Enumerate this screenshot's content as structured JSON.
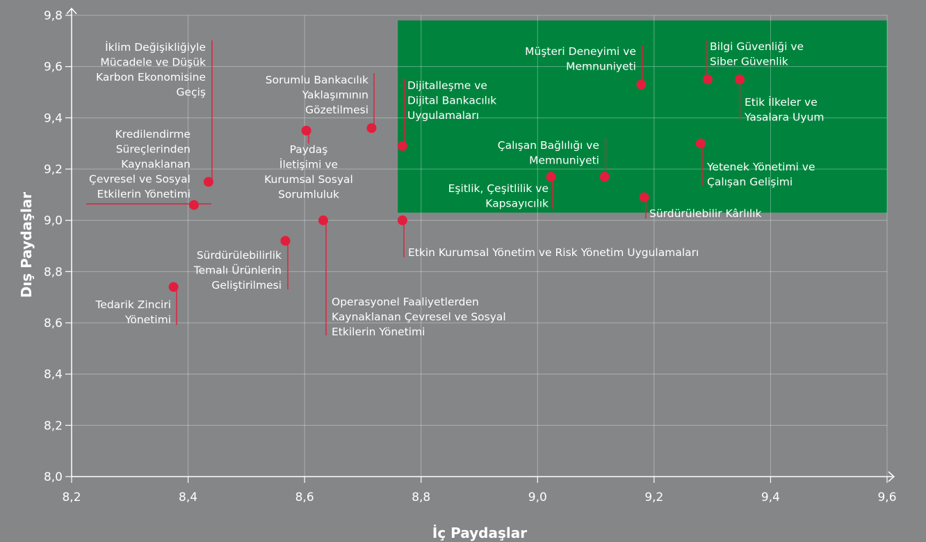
{
  "chart_data": {
    "type": "scatter",
    "xlabel": "İç Paydaşlar",
    "ylabel": "Dış Paydaşlar",
    "xlim": [
      8.2,
      9.6
    ],
    "ylim": [
      8.0,
      9.8
    ],
    "x_ticks": [
      "8,2",
      "8,4",
      "8,6",
      "8,8",
      "9,0",
      "9,2",
      "9,4",
      "9,6"
    ],
    "y_ticks": [
      "8,0",
      "8,2",
      "8,4",
      "8,6",
      "8,8",
      "9,0",
      "9,2",
      "9,4",
      "9,6",
      "9,8"
    ],
    "grid": true,
    "highlight_region": {
      "x": [
        8.76,
        9.6
      ],
      "y": [
        9.03,
        9.78
      ],
      "color": "#00843d"
    },
    "point_color": "#e31e3c",
    "points": [
      {
        "label": "İklim Değişikliğiyle Mücadele ve Düşük Karbon Ekonomisine Geçiş",
        "x": 8.435,
        "y": 9.15
      },
      {
        "label": "Kredilendirme Süreçlerinden Kaynaklanan Çevresel ve Sosyal Etkilerin Yönetimi",
        "x": 8.41,
        "y": 9.06
      },
      {
        "label": "Paydaş İletişimi ve Kurumsal Sosyal Sorumluluk",
        "x": 8.603,
        "y": 9.35
      },
      {
        "label": "Sorumlu Bankacılık Yaklaşımının Gözetilmesi",
        "x": 8.715,
        "y": 9.36
      },
      {
        "label": "Dijitalleşme ve Dijital Bankacılık Uygulamaları",
        "x": 8.768,
        "y": 9.29
      },
      {
        "label": "Müşteri Deneyimi ve Memnuniyeti",
        "x": 9.178,
        "y": 9.53
      },
      {
        "label": "Bilgi Güvenliği ve Siber Güvenlik",
        "x": 9.292,
        "y": 9.55
      },
      {
        "label": "Etik İlkeler ve Yasalara Uyum",
        "x": 9.347,
        "y": 9.55
      },
      {
        "label": "Çalışan Bağlılığı ve Memnuniyeti",
        "x": 9.115,
        "y": 9.17
      },
      {
        "label": "Eşitlik, Çeşitlilik ve Kapsayıcılık",
        "x": 9.023,
        "y": 9.17
      },
      {
        "label": "Yetenek Yönetimi ve Çalışan Gelişimi",
        "x": 9.28,
        "y": 9.3
      },
      {
        "label": "Sürdürülebilir Kârlılık",
        "x": 9.183,
        "y": 9.09
      },
      {
        "label": "Etkin Kurumsal Yönetim ve Risk Yönetim Uygulamaları",
        "x": 8.768,
        "y": 9.0
      },
      {
        "label": "Operasyonel Faaliyetlerden Kaynaklanan Çevresel ve Sosyal Etkilerin Yönetimi",
        "x": 8.632,
        "y": 9.0
      },
      {
        "label": "Sürdürülebilirlik Temalı Ürünlerin Geliştirilmesi",
        "x": 8.567,
        "y": 8.92
      },
      {
        "label": "Tedarik Zinciri Yönetimi",
        "x": 8.375,
        "y": 8.74
      }
    ]
  },
  "label_lines": [
    [
      "İklim Değişikliğiyle",
      "Mücadele ve Düşük",
      "Karbon Ekonomisine",
      "Geçiş"
    ],
    [
      "Kredilendirme",
      "Süreçlerinden",
      "Kaynaklanan",
      "Çevresel ve Sosyal",
      "Etkilerin Yönetimi"
    ],
    [
      "Paydaş",
      "İletişimi ve",
      "Kurumsal Sosyal",
      "Sorumluluk"
    ],
    [
      "Sorumlu Bankacılık",
      "Yaklaşımının",
      "Gözetilmesi"
    ],
    [
      "Dijitalleşme ve",
      "Dijital Bankacılık",
      "Uygulamaları"
    ],
    [
      "Müşteri Deneyimi ve",
      "Memnuniyeti"
    ],
    [
      "Bilgi Güvenliği ve",
      "Siber Güvenlik"
    ],
    [
      "Etik İlkeler ve",
      "Yasalara Uyum"
    ],
    [
      "Çalışan Bağlılığı ve",
      "Memnuniyeti"
    ],
    [
      "Eşitlik, Çeşitlilik ve",
      "Kapsayıcılık"
    ],
    [
      "Yetenek Yönetimi ve",
      "Çalışan Gelişimi"
    ],
    [
      "Sürdürülebilir Kârlılık"
    ],
    [
      "Etkin Kurumsal Yönetim ve Risk Yönetim Uygulamaları"
    ],
    [
      "Operasyonel Faaliyetlerden",
      "Kaynaklanan Çevresel ve Sosyal",
      "Etkilerin Yönetimi"
    ],
    [
      "Sürdürülebilirlik",
      "Temalı Ürünlerin",
      "Geliştirilmesi"
    ],
    [
      "Tedarik Zinciri",
      "Yönetimi"
    ]
  ]
}
